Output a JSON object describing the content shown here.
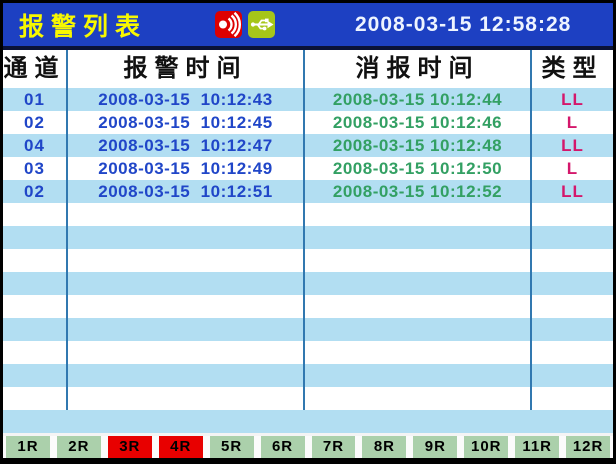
{
  "titlebar": {
    "title": "报警列表",
    "clock": "2008-03-15 12:58:28"
  },
  "icons": {
    "alarm": "alarm-sound-icon",
    "usb": "usb-icon"
  },
  "table": {
    "headers": {
      "channel": "通道",
      "alarm_time": "报警时间",
      "clear_time": "消报时间",
      "type": "类型"
    },
    "rows": [
      {
        "channel": "01",
        "alarm_time": "2008-03-15  10:12:43",
        "clear_time": "2008-03-15 10:12:44",
        "type": "LL"
      },
      {
        "channel": "02",
        "alarm_time": "2008-03-15  10:12:45",
        "clear_time": "2008-03-15 10:12:46",
        "type": "L"
      },
      {
        "channel": "04",
        "alarm_time": "2008-03-15  10:12:47",
        "clear_time": "2008-03-15 10:12:48",
        "type": "LL"
      },
      {
        "channel": "03",
        "alarm_time": "2008-03-15  10:12:49",
        "clear_time": "2008-03-15 10:12:50",
        "type": "L"
      },
      {
        "channel": "02",
        "alarm_time": "2008-03-15  10:12:51",
        "clear_time": "2008-03-15 10:12:52",
        "type": "LL"
      }
    ],
    "empty_rows": 9
  },
  "tabbar": {
    "tabs": [
      {
        "label": "1R",
        "state": "normal"
      },
      {
        "label": "2R",
        "state": "normal"
      },
      {
        "label": "3R",
        "state": "alarm"
      },
      {
        "label": "4R",
        "state": "alarm"
      },
      {
        "label": "5R",
        "state": "normal"
      },
      {
        "label": "6R",
        "state": "normal"
      },
      {
        "label": "7R",
        "state": "normal"
      },
      {
        "label": "8R",
        "state": "normal"
      },
      {
        "label": "9R",
        "state": "normal"
      },
      {
        "label": "10R",
        "state": "normal"
      },
      {
        "label": "11R",
        "state": "normal"
      },
      {
        "label": "12R",
        "state": "normal"
      }
    ]
  },
  "colors": {
    "titlebar_bg": "#1d40c2",
    "title_text": "#f8f800",
    "stripe": "#b2def2",
    "alarm_text": "#2046c8",
    "clear_text": "#33a063",
    "type_text": "#d4176b",
    "grid_line": "#3178b0",
    "tab_normal_bg": "#abd0ab",
    "tab_alarm_bg": "#e80000",
    "alarm_icon_bg": "#dd0000",
    "usb_icon_bg": "#a6c619"
  }
}
